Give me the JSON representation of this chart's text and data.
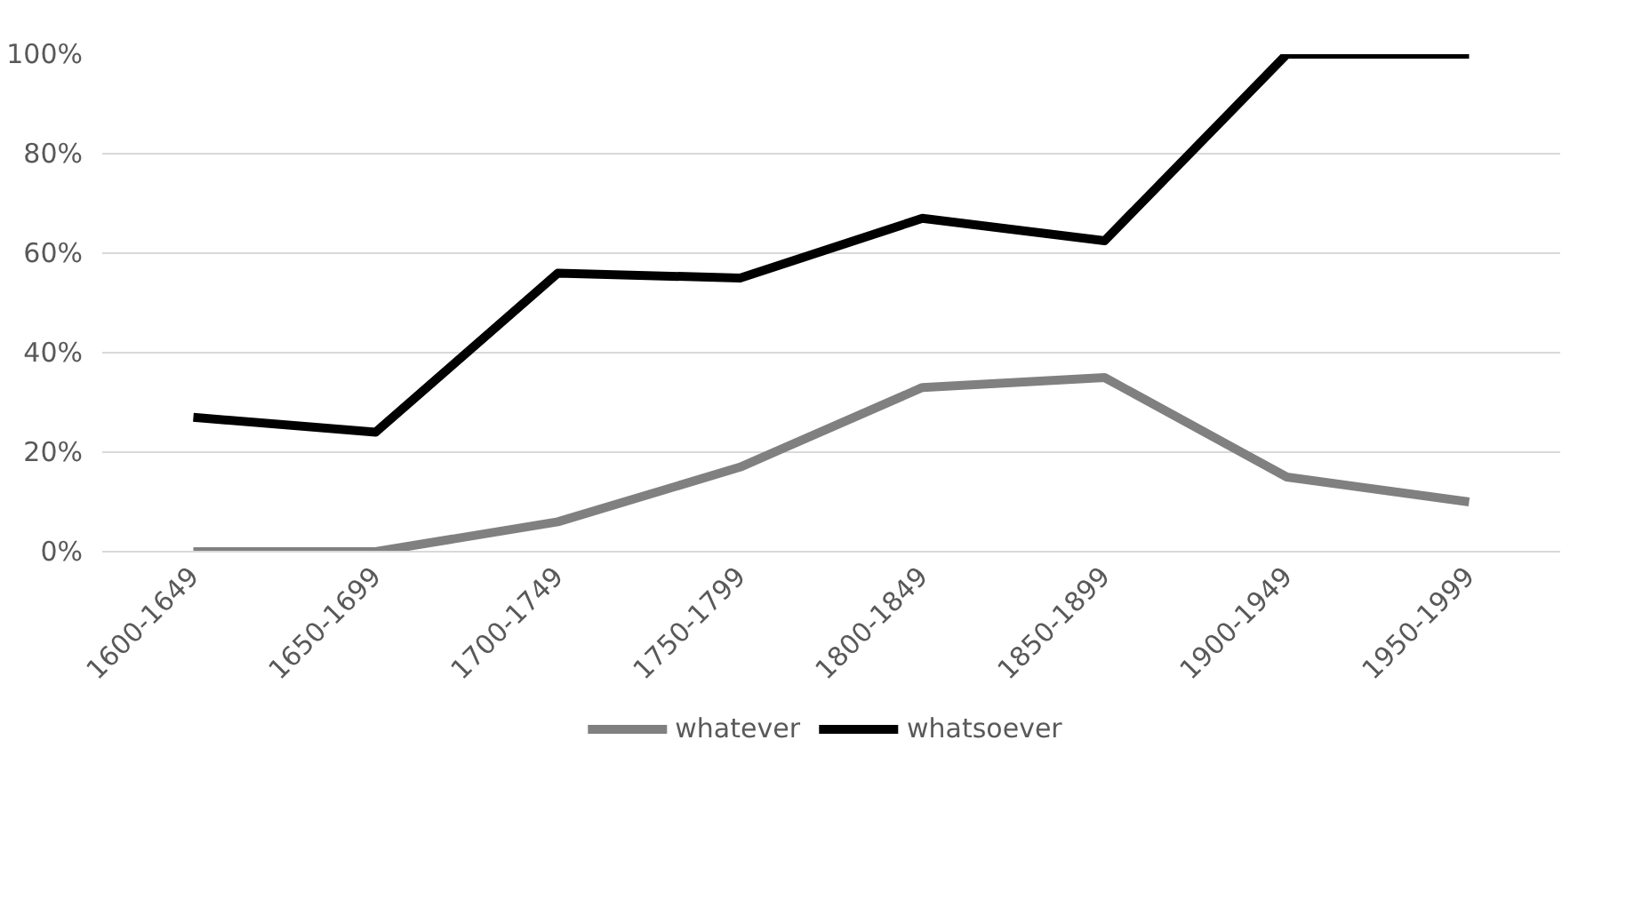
{
  "chart_data": {
    "type": "line",
    "categories": [
      "1600-1649",
      "1650-1699",
      "1700-1749",
      "1750-1799",
      "1800-1849",
      "1850-1899",
      "1900-1949",
      "1950-1999"
    ],
    "series": [
      {
        "name": "whatever",
        "color": "#808080",
        "values": [
          0,
          0,
          6,
          17,
          33,
          35,
          15,
          10
        ]
      },
      {
        "name": "whatsoever",
        "color": "#000000",
        "values": [
          27,
          24,
          56,
          55,
          67,
          62.5,
          100,
          100
        ]
      }
    ],
    "ylim": [
      0,
      100
    ],
    "yticks": [
      {
        "value": 0,
        "label": "0%"
      },
      {
        "value": 20,
        "label": "20%"
      },
      {
        "value": 40,
        "label": "40%"
      },
      {
        "value": 60,
        "label": "60%"
      },
      {
        "value": 80,
        "label": "80%"
      },
      {
        "value": 100,
        "label": "100%"
      }
    ],
    "grid": "y",
    "legend": "bottom",
    "marker": "none",
    "line_style": "solid"
  }
}
